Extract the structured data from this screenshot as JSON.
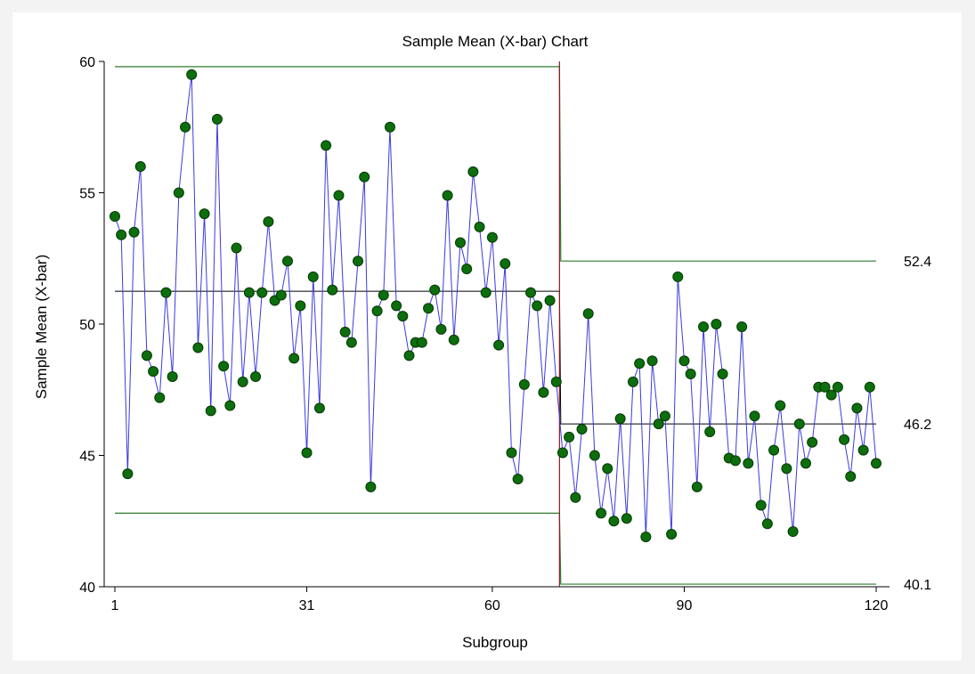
{
  "chart_data": {
    "type": "line",
    "title": "Sample Mean (X-bar) Chart",
    "xlabel": "Subgroup",
    "ylabel": "Sample Mean (X-bar)",
    "xlim": [
      1,
      120
    ],
    "ylim": [
      40,
      60
    ],
    "x_ticks": [
      1,
      31,
      60,
      90,
      120
    ],
    "y_ticks": [
      40,
      45,
      50,
      55,
      60
    ],
    "grid": false,
    "phase_change_x": 70.5,
    "control_limits": {
      "phase1": {
        "x_range": [
          1,
          70
        ],
        "ucl": 59.8,
        "center": 51.25,
        "lcl": 42.8
      },
      "phase2": {
        "x_range": [
          71,
          120
        ],
        "ucl": 52.4,
        "center": 46.2,
        "lcl": 40.1
      }
    },
    "right_labels": [
      "52.4",
      "46.2",
      "40.1"
    ],
    "colors": {
      "series_line": "#3a3ae0",
      "marker_fill": "#0c6e0c",
      "marker_stroke": "#063806",
      "control_limit": "#2e7d2e",
      "center_line": "#000000",
      "phase_line": "#8b1a1a"
    },
    "series": [
      {
        "values": [
          54.1,
          53.4,
          44.3,
          53.5,
          56.0,
          48.8,
          48.2,
          47.2,
          51.2,
          48.0,
          55.0,
          57.5,
          59.5,
          49.1,
          54.2,
          46.7,
          57.8,
          48.4,
          46.9,
          52.9,
          47.8,
          51.2,
          48.0,
          51.2,
          53.9,
          50.9,
          51.1,
          52.4,
          48.7,
          50.7,
          45.1,
          51.8,
          46.8,
          56.8,
          51.3,
          54.9,
          49.7,
          49.3,
          52.4,
          55.6,
          43.8,
          50.5,
          51.1,
          57.5,
          50.7,
          50.3,
          48.8,
          49.3,
          49.3,
          50.6,
          51.3,
          49.8,
          54.9,
          49.4,
          53.1,
          52.1,
          55.8,
          53.7,
          51.2,
          53.3,
          49.2,
          52.3,
          45.1,
          44.1,
          47.7,
          51.2,
          50.7,
          47.4,
          50.9,
          47.8,
          45.1,
          45.7,
          43.4,
          46.0,
          50.4,
          45.0,
          42.8,
          44.5,
          42.5,
          46.4,
          42.6,
          47.8,
          48.5,
          41.9,
          48.6,
          46.2,
          46.5,
          42.0,
          51.8,
          48.6,
          48.1,
          43.8,
          49.9,
          45.9,
          50.0,
          48.1,
          44.9,
          44.8,
          49.9,
          44.7,
          46.5,
          43.1,
          42.4,
          45.2,
          46.9,
          44.5,
          42.1,
          46.2,
          44.7,
          45.5,
          47.6,
          47.6,
          47.3,
          47.6,
          45.6,
          44.2,
          46.8,
          45.2,
          47.6,
          44.7
        ]
      }
    ]
  }
}
